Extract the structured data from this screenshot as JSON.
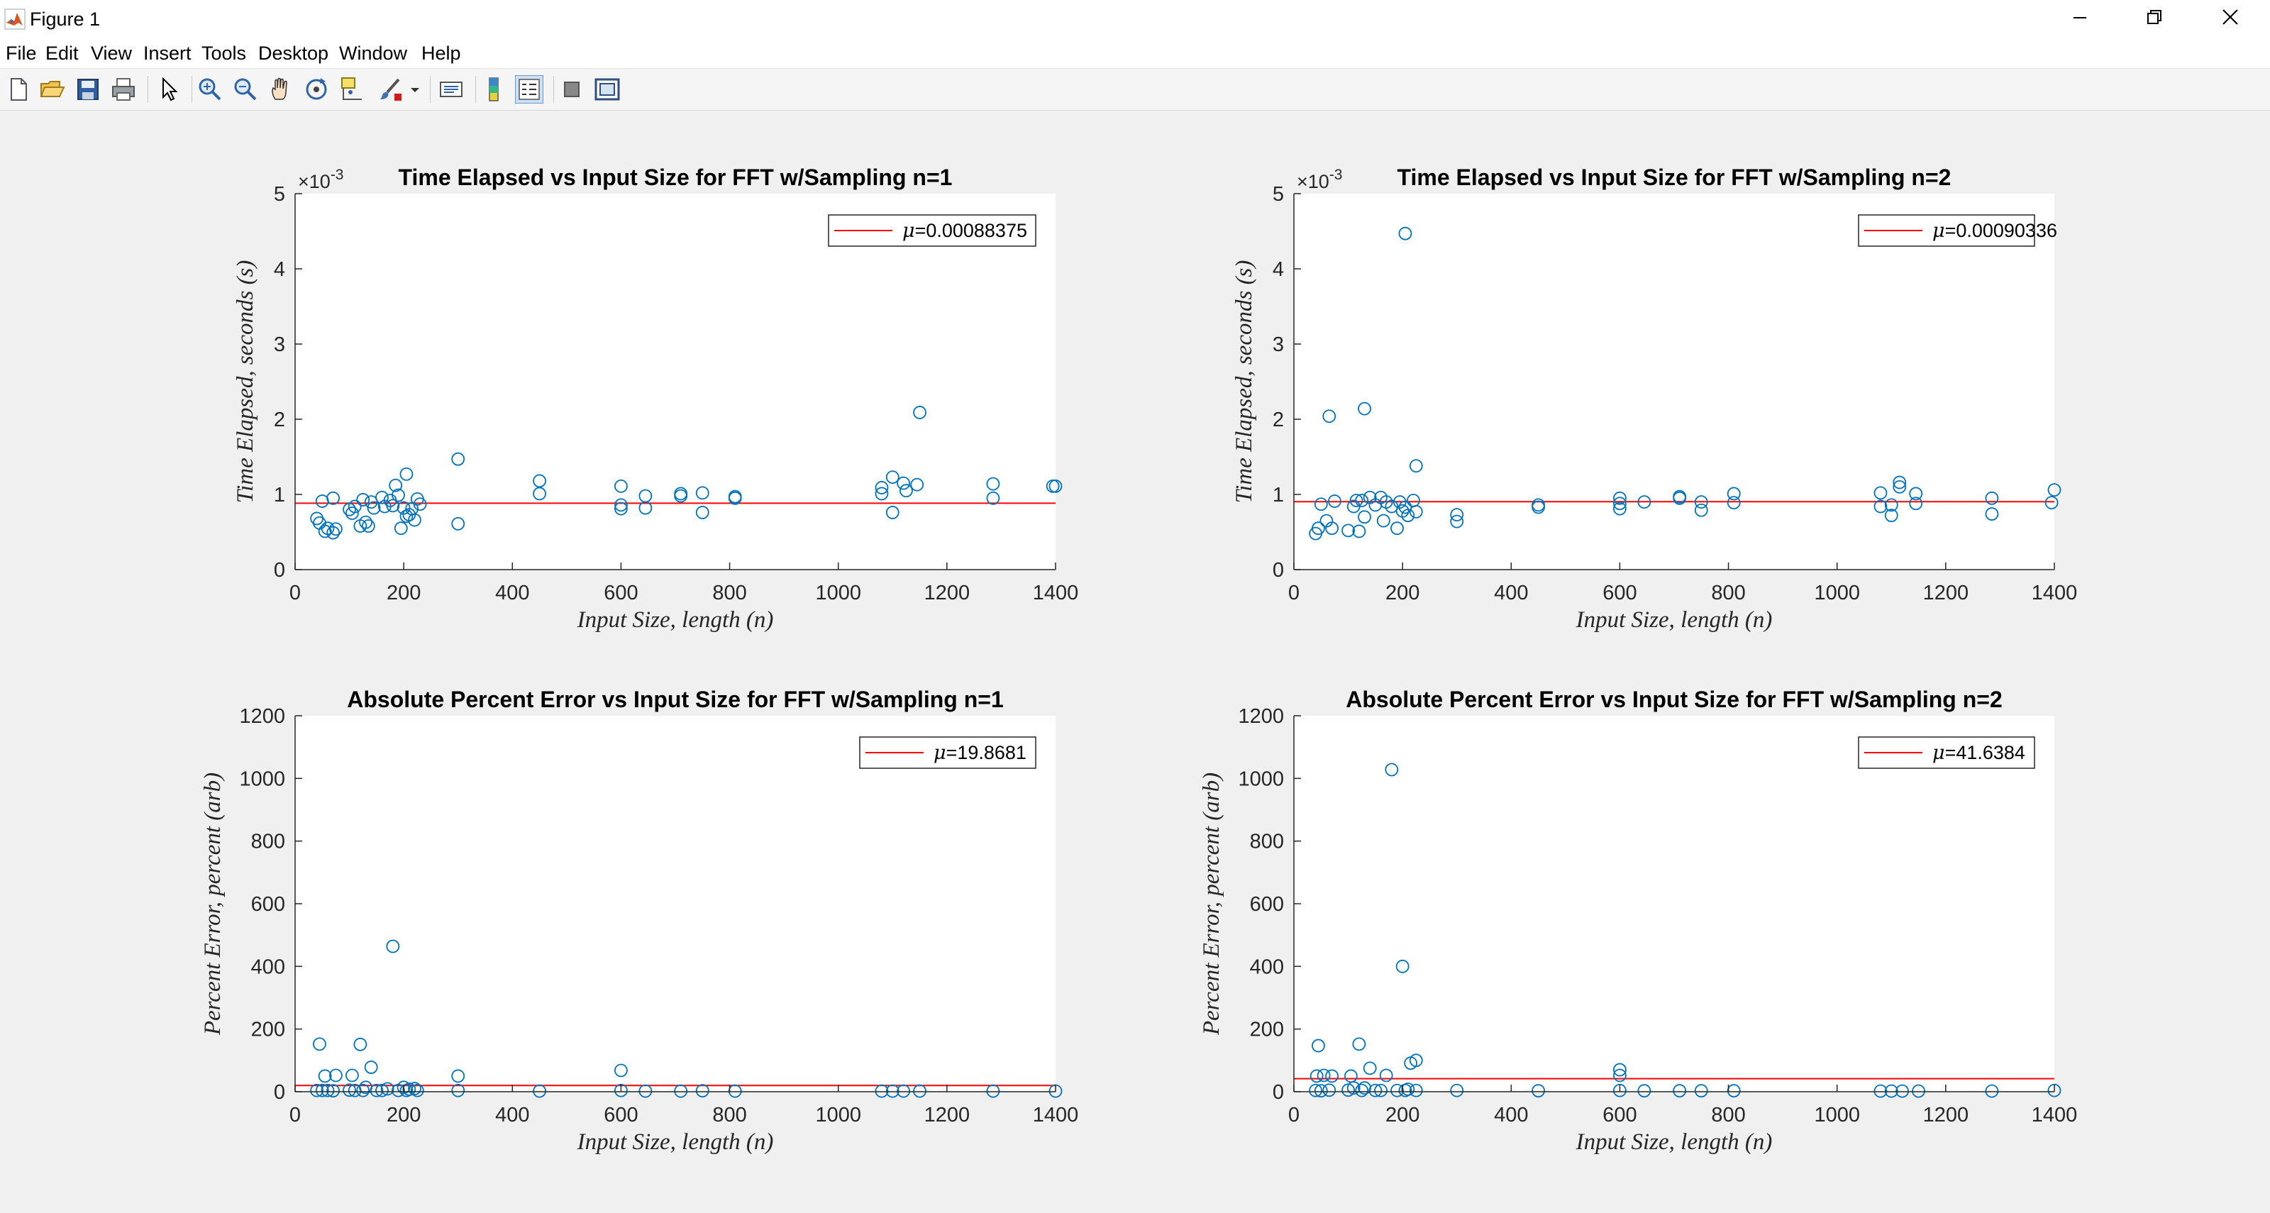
{
  "window": {
    "title": "Figure 1",
    "controls": {
      "minimize": "minimize-icon",
      "restore": "restore-icon",
      "close": "close-icon"
    }
  },
  "menu": [
    "File",
    "Edit",
    "View",
    "Insert",
    "Tools",
    "Desktop",
    "Window",
    "Help"
  ],
  "toolbar": [
    "new-figure-icon",
    "open-file-icon",
    "save-icon",
    "print-icon",
    "pointer-icon",
    "zoom-in-icon",
    "zoom-out-icon",
    "pan-icon",
    "rotate-3d-icon",
    "data-cursor-icon",
    "brush-icon",
    "link-plot-icon",
    "colorbar-icon",
    "legend-icon",
    "hide-plot-tools-icon",
    "show-plot-tools-icon"
  ],
  "colors": {
    "points": "#0072BD",
    "mean_line": "#FF0000",
    "axes": "#262626",
    "figure_bg": "#f0f0f0"
  },
  "chart_data": [
    {
      "type": "scatter",
      "title": "Time Elapsed vs Input Size for FFT w/Sampling n=1",
      "xlabel": "Input Size, length (n)",
      "ylabel": "Time Elapsed, seconds (s)",
      "xlim": [
        0,
        1400
      ],
      "ylim": [
        0,
        5
      ],
      "xticks": [
        "0",
        "200",
        "400",
        "600",
        "800",
        "1000",
        "1200",
        "1400"
      ],
      "yticks": [
        "0",
        "1",
        "2",
        "3",
        "4",
        "5"
      ],
      "exponent": "×10",
      "exponent_power": "-3",
      "legend": {
        "mu_symbol": "μ",
        "label": "=0.00088375",
        "location": "top-right"
      },
      "mean": 0.88375,
      "points": [
        [
          40,
          0.68
        ],
        [
          45,
          0.62
        ],
        [
          50,
          0.91
        ],
        [
          55,
          0.51
        ],
        [
          60,
          0.55
        ],
        [
          70,
          0.95
        ],
        [
          70,
          0.49
        ],
        [
          75,
          0.54
        ],
        [
          100,
          0.8
        ],
        [
          105,
          0.75
        ],
        [
          110,
          0.84
        ],
        [
          120,
          0.58
        ],
        [
          125,
          0.93
        ],
        [
          130,
          0.63
        ],
        [
          135,
          0.58
        ],
        [
          140,
          0.9
        ],
        [
          145,
          0.82
        ],
        [
          160,
          0.96
        ],
        [
          165,
          0.84
        ],
        [
          175,
          0.92
        ],
        [
          180,
          0.85
        ],
        [
          185,
          1.12
        ],
        [
          190,
          0.99
        ],
        [
          195,
          0.55
        ],
        [
          200,
          0.82
        ],
        [
          205,
          0.71
        ],
        [
          205,
          1.27
        ],
        [
          210,
          0.73
        ],
        [
          215,
          0.81
        ],
        [
          220,
          0.66
        ],
        [
          225,
          0.94
        ],
        [
          230,
          0.87
        ],
        [
          300,
          0.61
        ],
        [
          300,
          1.47
        ],
        [
          450,
          1.01
        ],
        [
          450,
          1.18
        ],
        [
          600,
          0.81
        ],
        [
          600,
          0.86
        ],
        [
          600,
          1.11
        ],
        [
          645,
          0.82
        ],
        [
          645,
          0.98
        ],
        [
          710,
          1.01
        ],
        [
          710,
          0.98
        ],
        [
          750,
          1.02
        ],
        [
          750,
          0.76
        ],
        [
          810,
          0.97
        ],
        [
          810,
          0.95
        ],
        [
          1080,
          1.01
        ],
        [
          1080,
          1.09
        ],
        [
          1100,
          0.76
        ],
        [
          1100,
          1.23
        ],
        [
          1120,
          1.15
        ],
        [
          1125,
          1.05
        ],
        [
          1145,
          1.13
        ],
        [
          1150,
          2.09
        ],
        [
          1285,
          0.95
        ],
        [
          1285,
          1.14
        ],
        [
          1395,
          1.11
        ],
        [
          1400,
          1.11
        ]
      ]
    },
    {
      "type": "scatter",
      "title": "Time Elapsed vs Input Size for FFT w/Sampling n=2",
      "xlabel": "Input Size, length (n)",
      "ylabel": "Time Elapsed, seconds (s)",
      "xlim": [
        0,
        1400
      ],
      "ylim": [
        0,
        5
      ],
      "xticks": [
        "0",
        "200",
        "400",
        "600",
        "800",
        "1000",
        "1200",
        "1400"
      ],
      "yticks": [
        "0",
        "1",
        "2",
        "3",
        "4",
        "5"
      ],
      "exponent": "×10",
      "exponent_power": "-3",
      "legend": {
        "mu_symbol": "μ",
        "label": "=0.00090336",
        "location": "top-right"
      },
      "mean": 0.90336,
      "points": [
        [
          40,
          0.48
        ],
        [
          45,
          0.55
        ],
        [
          50,
          0.87
        ],
        [
          60,
          0.65
        ],
        [
          65,
          2.04
        ],
        [
          70,
          0.55
        ],
        [
          75,
          0.91
        ],
        [
          100,
          0.52
        ],
        [
          110,
          0.84
        ],
        [
          115,
          0.92
        ],
        [
          120,
          0.51
        ],
        [
          125,
          0.92
        ],
        [
          130,
          0.7
        ],
        [
          130,
          2.14
        ],
        [
          140,
          0.96
        ],
        [
          150,
          0.86
        ],
        [
          160,
          0.96
        ],
        [
          165,
          0.65
        ],
        [
          170,
          0.9
        ],
        [
          180,
          0.84
        ],
        [
          190,
          0.55
        ],
        [
          195,
          0.9
        ],
        [
          200,
          0.78
        ],
        [
          205,
          0.83
        ],
        [
          205,
          4.47
        ],
        [
          210,
          0.72
        ],
        [
          220,
          0.92
        ],
        [
          225,
          1.38
        ],
        [
          225,
          0.77
        ],
        [
          300,
          0.64
        ],
        [
          300,
          0.73
        ],
        [
          450,
          0.86
        ],
        [
          450,
          0.83
        ],
        [
          600,
          0.81
        ],
        [
          600,
          0.88
        ],
        [
          600,
          0.95
        ],
        [
          645,
          0.9
        ],
        [
          710,
          0.97
        ],
        [
          710,
          0.95
        ],
        [
          750,
          0.79
        ],
        [
          750,
          0.9
        ],
        [
          810,
          0.89
        ],
        [
          810,
          1.01
        ],
        [
          1080,
          1.02
        ],
        [
          1080,
          0.84
        ],
        [
          1100,
          0.72
        ],
        [
          1100,
          0.86
        ],
        [
          1115,
          1.1
        ],
        [
          1115,
          1.16
        ],
        [
          1145,
          0.88
        ],
        [
          1145,
          1.01
        ],
        [
          1285,
          0.74
        ],
        [
          1285,
          0.95
        ],
        [
          1395,
          0.89
        ],
        [
          1400,
          1.06
        ]
      ]
    },
    {
      "type": "scatter",
      "title": "Absolute Percent Error vs Input Size for FFT w/Sampling n=1",
      "xlabel": "Input Size, length (n)",
      "ylabel": "Percent Error, percent (arb)",
      "xlim": [
        0,
        1400
      ],
      "ylim": [
        0,
        1200
      ],
      "xticks": [
        "0",
        "200",
        "400",
        "600",
        "800",
        "1000",
        "1200",
        "1400"
      ],
      "yticks": [
        "0",
        "200",
        "400",
        "600",
        "800",
        "1000",
        "1200"
      ],
      "legend": {
        "mu_symbol": "μ",
        "label": "=19.8681",
        "location": "top-right"
      },
      "mean": 19.8681,
      "points": [
        [
          40,
          4
        ],
        [
          45,
          152
        ],
        [
          50,
          4
        ],
        [
          55,
          50
        ],
        [
          60,
          4
        ],
        [
          70,
          3
        ],
        [
          75,
          52
        ],
        [
          100,
          5
        ],
        [
          105,
          52
        ],
        [
          110,
          4
        ],
        [
          120,
          151
        ],
        [
          125,
          4
        ],
        [
          130,
          14
        ],
        [
          140,
          78
        ],
        [
          150,
          4
        ],
        [
          160,
          4
        ],
        [
          170,
          9
        ],
        [
          180,
          464
        ],
        [
          190,
          4
        ],
        [
          200,
          14
        ],
        [
          205,
          4
        ],
        [
          210,
          8
        ],
        [
          220,
          10
        ],
        [
          225,
          4
        ],
        [
          300,
          4
        ],
        [
          300,
          50
        ],
        [
          450,
          2
        ],
        [
          600,
          4
        ],
        [
          600,
          68
        ],
        [
          645,
          2
        ],
        [
          710,
          2
        ],
        [
          750,
          3
        ],
        [
          810,
          2
        ],
        [
          1080,
          2
        ],
        [
          1100,
          2
        ],
        [
          1120,
          2
        ],
        [
          1150,
          2
        ],
        [
          1285,
          2
        ],
        [
          1400,
          2
        ]
      ]
    },
    {
      "type": "scatter",
      "title": "Absolute Percent Error vs Input Size for FFT w/Sampling n=2",
      "xlabel": "Input Size, length (n)",
      "ylabel": "Percent Error, percent (arb)",
      "xlim": [
        0,
        1400
      ],
      "ylim": [
        0,
        1200
      ],
      "xticks": [
        "0",
        "200",
        "400",
        "600",
        "800",
        "1000",
        "1200",
        "1400"
      ],
      "yticks": [
        "0",
        "200",
        "400",
        "600",
        "800",
        "1000",
        "1200"
      ],
      "legend": {
        "mu_symbol": "μ",
        "label": "=41.6384",
        "location": "top-right"
      },
      "mean": 41.6384,
      "points": [
        [
          40,
          4
        ],
        [
          42,
          50
        ],
        [
          45,
          147
        ],
        [
          50,
          3
        ],
        [
          55,
          52
        ],
        [
          65,
          5
        ],
        [
          70,
          50
        ],
        [
          100,
          5
        ],
        [
          105,
          50
        ],
        [
          110,
          12
        ],
        [
          120,
          152
        ],
        [
          125,
          4
        ],
        [
          130,
          12
        ],
        [
          140,
          75
        ],
        [
          150,
          4
        ],
        [
          160,
          4
        ],
        [
          170,
          52
        ],
        [
          180,
          1028
        ],
        [
          190,
          4
        ],
        [
          200,
          400
        ],
        [
          205,
          4
        ],
        [
          210,
          8
        ],
        [
          215,
          91
        ],
        [
          225,
          100
        ],
        [
          225,
          4
        ],
        [
          300,
          4
        ],
        [
          450,
          3
        ],
        [
          600,
          4
        ],
        [
          600,
          52
        ],
        [
          600,
          70
        ],
        [
          645,
          3
        ],
        [
          710,
          3
        ],
        [
          750,
          3
        ],
        [
          810,
          3
        ],
        [
          1080,
          2
        ],
        [
          1100,
          2
        ],
        [
          1120,
          2
        ],
        [
          1150,
          2
        ],
        [
          1285,
          2
        ],
        [
          1400,
          4
        ]
      ]
    }
  ]
}
